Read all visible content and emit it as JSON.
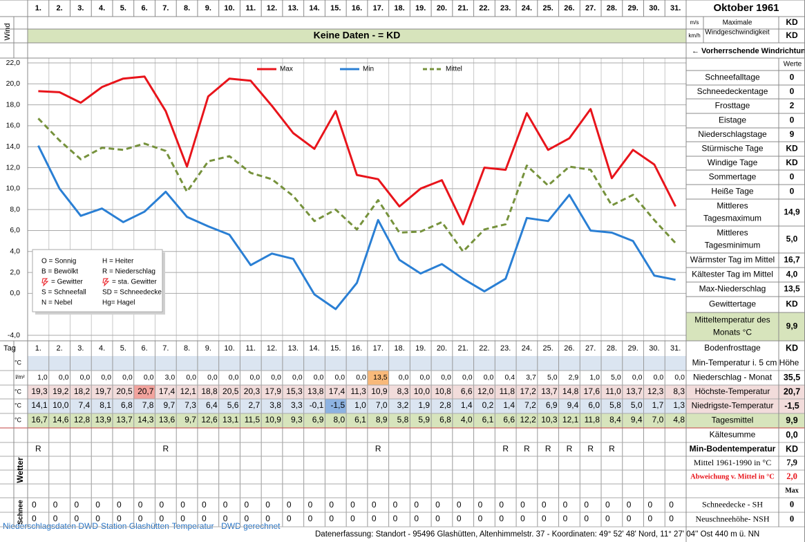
{
  "header": {
    "month": "Oktober 1961"
  },
  "wind": {
    "label": "Wind",
    "unit_ms": "m/s",
    "unit_kmh": "km/h",
    "max_label": [
      "Maximale",
      "Windgeschwindigkeit"
    ],
    "max_ms": "KD",
    "max_kmh": "KD",
    "no_data": "Keine Daten -  = KD",
    "direction": "← Vorherrschende Windrichtung",
    "band_color": "#d7e4bc"
  },
  "chart_data": {
    "type": "line",
    "categories": [
      "1.",
      "2.",
      "3.",
      "4.",
      "5.",
      "6.",
      "7.",
      "8.",
      "9.",
      "10.",
      "11.",
      "12.",
      "13.",
      "14.",
      "15.",
      "16.",
      "17.",
      "18.",
      "19.",
      "20.",
      "21.",
      "22.",
      "23.",
      "24.",
      "25.",
      "26.",
      "27.",
      "28.",
      "29.",
      "30.",
      "31."
    ],
    "series": [
      {
        "name": "Max",
        "color": "#e8141b",
        "line_style": "solid",
        "row_color": "#f2dcdb",
        "highlight": {
          "index": 5,
          "color": "#f2a39d"
        },
        "values": [
          19.3,
          19.2,
          18.2,
          19.7,
          20.5,
          20.7,
          17.4,
          12.1,
          18.8,
          20.5,
          20.3,
          17.9,
          15.3,
          13.8,
          17.4,
          11.3,
          10.9,
          8.3,
          10.0,
          10.8,
          6.6,
          12.0,
          11.8,
          17.2,
          13.7,
          14.8,
          17.6,
          11.0,
          13.7,
          12.3,
          8.3
        ],
        "value_labels": [
          "19,3",
          "19,2",
          "18,2",
          "19,7",
          "20,5",
          "20,7",
          "17,4",
          "12,1",
          "18,8",
          "20,5",
          "20,3",
          "17,9",
          "15,3",
          "13,8",
          "17,4",
          "11,3",
          "10,9",
          "8,3",
          "10,0",
          "10,8",
          "6,6",
          "12,0",
          "11,8",
          "17,2",
          "13,7",
          "14,8",
          "17,6",
          "11,0",
          "13,7",
          "12,3",
          "8,3"
        ]
      },
      {
        "name": "Min",
        "color": "#2a7fd4",
        "line_style": "solid",
        "row_color": "#dbe5f1",
        "highlight": {
          "index": 14,
          "color": "#8db3e2"
        },
        "values": [
          14.1,
          10.0,
          7.4,
          8.1,
          6.8,
          7.8,
          9.7,
          7.3,
          6.4,
          5.6,
          2.7,
          3.8,
          3.3,
          -0.1,
          -1.5,
          1.0,
          7.0,
          3.2,
          1.9,
          2.8,
          1.4,
          0.2,
          1.4,
          7.2,
          6.9,
          9.4,
          6.0,
          5.8,
          5.0,
          1.7,
          1.3
        ],
        "value_labels": [
          "14,1",
          "10,0",
          "7,4",
          "8,1",
          "6,8",
          "7,8",
          "9,7",
          "7,3",
          "6,4",
          "5,6",
          "2,7",
          "3,8",
          "3,3",
          "-0,1",
          "-1,5",
          "1,0",
          "7,0",
          "3,2",
          "1,9",
          "2,8",
          "1,4",
          "0,2",
          "1,4",
          "7,2",
          "6,9",
          "9,4",
          "6,0",
          "5,8",
          "5,0",
          "1,7",
          "1,3"
        ]
      },
      {
        "name": "Mittel",
        "color": "#76923c",
        "line_style": "dashed",
        "row_color": "#d7e4bc",
        "values": [
          16.7,
          14.6,
          12.8,
          13.9,
          13.7,
          14.3,
          13.6,
          9.7,
          12.6,
          13.1,
          11.5,
          10.9,
          9.3,
          6.9,
          8.0,
          6.1,
          8.9,
          5.8,
          5.9,
          6.8,
          4.0,
          6.1,
          6.6,
          12.2,
          10.3,
          12.1,
          11.8,
          8.4,
          9.4,
          7.0,
          4.8
        ],
        "value_labels": [
          "16,7",
          "14,6",
          "12,8",
          "13,9",
          "13,7",
          "14,3",
          "13,6",
          "9,7",
          "12,6",
          "13,1",
          "11,5",
          "10,9",
          "9,3",
          "6,9",
          "8,0",
          "6,1",
          "8,9",
          "5,8",
          "5,9",
          "6,8",
          "4,0",
          "6,1",
          "6,6",
          "12,2",
          "10,3",
          "12,1",
          "11,8",
          "8,4",
          "9,4",
          "7,0",
          "4,8"
        ]
      }
    ],
    "ylim": [
      -4,
      22
    ],
    "yticks": [
      {
        "value": 22,
        "label": "22,0"
      },
      {
        "value": 20,
        "label": "20,0"
      },
      {
        "value": 18,
        "label": "18,0"
      },
      {
        "value": 16,
        "label": "16,0"
      },
      {
        "value": 14,
        "label": "14,0"
      },
      {
        "value": 12,
        "label": "12,0"
      },
      {
        "value": 10,
        "label": "10,0"
      },
      {
        "value": 8,
        "label": "8,0"
      },
      {
        "value": 6,
        "label": "6,0"
      },
      {
        "value": 4,
        "label": "4,0"
      },
      {
        "value": 2,
        "label": "2,0"
      },
      {
        "value": 0,
        "label": "0,0"
      },
      {
        "value": -4,
        "label": "-4,0"
      }
    ],
    "grid": true,
    "legend": "top",
    "weather_key": [
      "O = Sonnig",
      "H = Heiter",
      "B = Bewölkt",
      "R = Niederschlag",
      "= Gewitter",
      "= sta. Gewitter",
      "S = Schneefall",
      "SD = Schneedecke",
      "N = Nebel",
      "Hg= Hagel"
    ]
  },
  "stats": {
    "header": "Werte",
    "rows": [
      {
        "label": [
          "Schneefalltage"
        ],
        "value": "0"
      },
      {
        "label": [
          "Schneedeckentage"
        ],
        "value": "0"
      },
      {
        "label": [
          "Frosttage"
        ],
        "value": "2"
      },
      {
        "label": [
          "Eistage"
        ],
        "value": "0"
      },
      {
        "label": [
          "Niederschlagstage"
        ],
        "value": "9"
      },
      {
        "label": [
          "Stürmische Tage"
        ],
        "value": "KD"
      },
      {
        "label": [
          "Windige Tage"
        ],
        "value": "KD"
      },
      {
        "label": [
          "Sommertage"
        ],
        "value": "0"
      },
      {
        "label": [
          "Heiße Tage"
        ],
        "value": "0"
      },
      {
        "label": [
          "Mittleres",
          "Tagesmaximum"
        ],
        "value": "14,9"
      },
      {
        "label": [
          "Mittleres",
          "Tagesminimum"
        ],
        "value": "5,0"
      },
      {
        "label": [
          "Wärmster Tag im Mittel"
        ],
        "value": "16,7"
      },
      {
        "label": [
          "Kältester Tag im Mittel"
        ],
        "value": "4,0"
      },
      {
        "label": [
          "Max-Niederschlag"
        ],
        "value": "13,5"
      },
      {
        "label": [
          "Gewittertage"
        ],
        "value": "KD"
      },
      {
        "label": [
          "Mitteltemperatur des",
          "Monats °C"
        ],
        "value": "9,9"
      }
    ]
  },
  "table": {
    "day_label": "Tag",
    "unit_c": "°C",
    "unit_lm": "l/m²",
    "precip_highlight": {
      "index": 16,
      "color": "#f8b97a"
    },
    "precip": [
      "1,0",
      "0,0",
      "0,0",
      "0,0",
      "0,0",
      "0,0",
      "3,0",
      "0,0",
      "0,0",
      "0,0",
      "0,0",
      "0,0",
      "0,0",
      "0,0",
      "0,0",
      "0,0",
      "13,5",
      "0,0",
      "0,0",
      "0,0",
      "0,0",
      "0,0",
      "0,4",
      "3,7",
      "5,0",
      "2,9",
      "1,0",
      "5,0",
      "0,0",
      "0,0",
      "0,0"
    ],
    "weather_label": "Wetter",
    "weather": [
      "R",
      null,
      null,
      null,
      null,
      null,
      "R",
      null,
      null,
      null,
      null,
      null,
      null,
      null,
      null,
      null,
      "R",
      null,
      null,
      null,
      null,
      null,
      "R",
      "R",
      "R",
      "R",
      "R",
      "R",
      null,
      null,
      null
    ],
    "snow_label": "Schnee",
    "snow_depth": [
      0,
      0,
      0,
      0,
      0,
      0,
      0,
      0,
      0,
      0,
      0,
      0,
      0,
      0,
      0,
      0,
      0,
      0,
      0,
      0,
      0,
      0,
      0,
      0,
      0,
      0,
      0,
      0,
      0,
      0,
      0
    ],
    "new_snow": [
      0,
      0,
      0,
      0,
      0,
      0,
      0,
      0,
      0,
      0,
      0,
      0,
      0,
      0,
      0,
      0,
      0,
      0,
      0,
      0,
      0,
      0,
      0,
      0,
      0,
      0,
      0,
      0,
      0,
      0,
      0
    ],
    "side": [
      {
        "label": "Bodenfrosttage",
        "value": "KD"
      },
      {
        "label": "Min-Temperatur i. 5 cm Höhe"
      },
      {
        "label": "Niederschlag - Monat",
        "value": "35,5"
      },
      {
        "label": "Höchste-Temperatur",
        "value": "20,7"
      },
      {
        "label": "Niedrigste-Temperatur",
        "value": "-1,5"
      },
      {
        "label": "Tagesmittel",
        "value": "9,9"
      },
      {
        "label": "Kältesumme",
        "value": "0,0"
      },
      {
        "label": "Min-Bodentemperatur",
        "value": "KD"
      },
      {
        "label": "Mittel 1961-1990 in °C",
        "value": "7,9"
      },
      {
        "label": "Abweichung v. Mittel in °C",
        "value": "2,0"
      },
      {
        "value": "Max"
      },
      {
        "label": "Schneedecke -  SH",
        "value": "0"
      },
      {
        "label": "Neuschneehöhe- NSH",
        "value": "0"
      }
    ]
  },
  "footer": {
    "left": "Niederschlagsdaten DWD-Station Glashütten-Temperatur -  DWD gerechnet",
    "right": "Datenerfassung: Standort -  95496  Glashütten, Altenhimmelstr. 37 - Koordinaten:  49° 52' 48' Nord,   11° 27' 04'' Ost   440 m ü. NN"
  }
}
